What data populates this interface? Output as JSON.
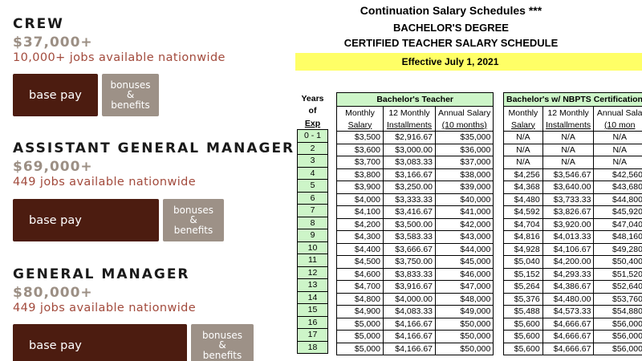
{
  "jobs": [
    {
      "title": "CREW",
      "salary": "$37,000+",
      "jobs": "10,000+ jobs available nationwide",
      "base_label": "base pay",
      "bonus_lines": [
        "bonuses",
        "&",
        "benefits"
      ]
    },
    {
      "title": "ASSISTANT GENERAL MANAGER",
      "salary": "$69,000+",
      "jobs": "449 jobs available nationwide",
      "base_label": "base pay",
      "bonus_lines": [
        "bonuses",
        "&",
        "benefits"
      ]
    },
    {
      "title": "GENERAL MANAGER",
      "salary": "$80,000+",
      "jobs": "449 jobs available nationwide",
      "base_label": "base pay",
      "bonus_lines": [
        "bonuses",
        "&",
        "benefits"
      ]
    }
  ],
  "schedule": {
    "title": "Continuation Salary Schedules ***",
    "degree": "BACHELOR'S DEGREE",
    "schedule_name": "CERTIFIED TEACHER SALARY SCHEDULE",
    "effective": "Effective July 1, 2021",
    "years_header": [
      "Years",
      "of",
      "Exp"
    ],
    "years": [
      "0 - 1",
      "2",
      "3",
      "4",
      "5",
      "6",
      "7",
      "8",
      "9",
      "10",
      "11",
      "12",
      "13",
      "14",
      "15",
      "16",
      "17",
      "18"
    ],
    "bachelor": {
      "title": "Bachelor's Teacher",
      "col_top": [
        "Monthly",
        "12 Monthly",
        "Annual Salary"
      ],
      "col_bottom": [
        "Salary",
        "Installments",
        "(10 months)"
      ],
      "rows": [
        [
          "$3,500",
          "$2,916.67",
          "$35,000"
        ],
        [
          "$3,600",
          "$3,000.00",
          "$36,000"
        ],
        [
          "$3,700",
          "$3,083.33",
          "$37,000"
        ],
        [
          "$3,800",
          "$3,166.67",
          "$38,000"
        ],
        [
          "$3,900",
          "$3,250.00",
          "$39,000"
        ],
        [
          "$4,000",
          "$3,333.33",
          "$40,000"
        ],
        [
          "$4,100",
          "$3,416.67",
          "$41,000"
        ],
        [
          "$4,200",
          "$3,500.00",
          "$42,000"
        ],
        [
          "$4,300",
          "$3,583.33",
          "$43,000"
        ],
        [
          "$4,400",
          "$3,666.67",
          "$44,000"
        ],
        [
          "$4,500",
          "$3,750.00",
          "$45,000"
        ],
        [
          "$4,600",
          "$3,833.33",
          "$46,000"
        ],
        [
          "$4,700",
          "$3,916.67",
          "$47,000"
        ],
        [
          "$4,800",
          "$4,000.00",
          "$48,000"
        ],
        [
          "$4,900",
          "$4,083.33",
          "$49,000"
        ],
        [
          "$5,000",
          "$4,166.67",
          "$50,000"
        ],
        [
          "$5,000",
          "$4,166.67",
          "$50,000"
        ],
        [
          "$5,000",
          "$4,166.67",
          "$50,000"
        ]
      ]
    },
    "nbpts": {
      "title": "Bachelor's w/ NBPTS Certification",
      "col_top": [
        "Monthly",
        "12 Monthly",
        "Annual Sala"
      ],
      "col_bottom": [
        "Salary",
        "Installments",
        "(10 mon"
      ],
      "rows": [
        [
          "N/A",
          "N/A",
          "N/A"
        ],
        [
          "N/A",
          "N/A",
          "N/A"
        ],
        [
          "N/A",
          "N/A",
          "N/A"
        ],
        [
          "$4,256",
          "$3,546.67",
          "$42,560"
        ],
        [
          "$4,368",
          "$3,640.00",
          "$43,680"
        ],
        [
          "$4,480",
          "$3,733.33",
          "$44,800"
        ],
        [
          "$4,592",
          "$3,826.67",
          "$45,920"
        ],
        [
          "$4,704",
          "$3,920.00",
          "$47,040"
        ],
        [
          "$4,816",
          "$4,013.33",
          "$48,160"
        ],
        [
          "$4,928",
          "$4,106.67",
          "$49,280"
        ],
        [
          "$5,040",
          "$4,200.00",
          "$50,400"
        ],
        [
          "$5,152",
          "$4,293.33",
          "$51,520"
        ],
        [
          "$5,264",
          "$4,386.67",
          "$52,640"
        ],
        [
          "$5,376",
          "$4,480.00",
          "$53,760"
        ],
        [
          "$5,488",
          "$4,573.33",
          "$54,880"
        ],
        [
          "$5,600",
          "$4,666.67",
          "$56,000"
        ],
        [
          "$5,600",
          "$4,666.67",
          "$56,000"
        ],
        [
          "$5,600",
          "$4,666.67",
          "$56,000"
        ]
      ]
    }
  }
}
